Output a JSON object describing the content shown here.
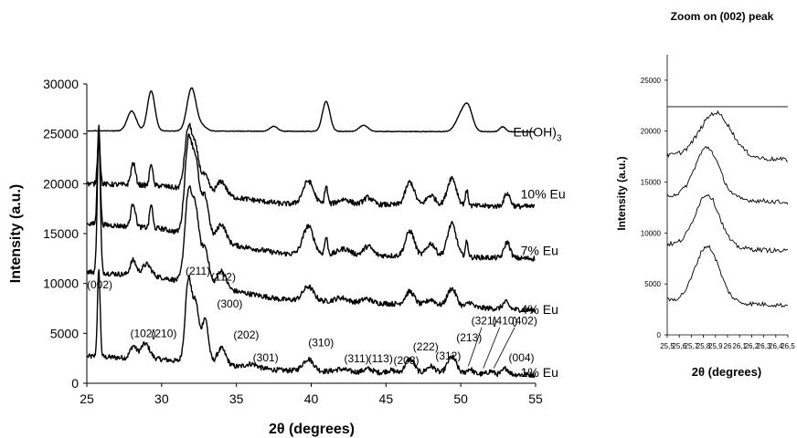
{
  "chart_data": [
    {
      "type": "line",
      "title": "",
      "xlabel": "2θ (degrees)",
      "ylabel": "Intensity (a.u.)",
      "xlim": [
        25,
        55
      ],
      "ylim": [
        0,
        30000
      ],
      "x_ticks": [
        "25",
        "30",
        "35",
        "40",
        "45",
        "50",
        "55"
      ],
      "y_ticks": [
        "0",
        "5000",
        "10000",
        "15000",
        "20000",
        "25000",
        "30000"
      ],
      "grid": false,
      "legend": "none",
      "series": [
        {
          "name": "1% Eu",
          "baseline": 900,
          "background": [
            [
              25,
              2700
            ],
            [
              30,
              2400
            ],
            [
              33,
              1900
            ],
            [
              38,
              1300
            ],
            [
              45,
              1050
            ],
            [
              55,
              850
            ]
          ],
          "peaks": [
            [
              25.8,
              8600,
              0.09
            ],
            [
              28.1,
              1200,
              0.2
            ],
            [
              28.9,
              1500,
              0.3
            ],
            [
              31.8,
              8300,
              0.22
            ],
            [
              32.3,
              5500,
              0.2
            ],
            [
              32.9,
              4600,
              0.22
            ],
            [
              34.0,
              1700,
              0.3
            ],
            [
              36.0,
              400,
              0.4
            ],
            [
              39.8,
              1200,
              0.35
            ],
            [
              42.0,
              250,
              0.4
            ],
            [
              43.8,
              350,
              0.3
            ],
            [
              45.3,
              250,
              0.3
            ],
            [
              46.6,
              1400,
              0.3
            ],
            [
              48.0,
              700,
              0.3
            ],
            [
              49.4,
              1700,
              0.3
            ],
            [
              50.6,
              500,
              0.2
            ],
            [
              52.0,
              300,
              0.2
            ],
            [
              53.0,
              600,
              0.2
            ]
          ]
        },
        {
          "name": "4% Eu",
          "baseline": 7300,
          "background": [
            [
              25,
              11200
            ],
            [
              30,
              10600
            ],
            [
              35,
              9200
            ],
            [
              38,
              8400
            ],
            [
              45,
              8000
            ],
            [
              55,
              7300
            ]
          ],
          "peaks": [
            [
              25.8,
              13800,
              0.1
            ],
            [
              28.1,
              1500,
              0.2
            ],
            [
              29.0,
              1200,
              0.3
            ],
            [
              31.8,
              8900,
              0.25
            ],
            [
              32.3,
              6500,
              0.22
            ],
            [
              32.9,
              3800,
              0.25
            ],
            [
              34.0,
              1800,
              0.3
            ],
            [
              39.8,
              1400,
              0.35
            ],
            [
              42.0,
              400,
              0.4
            ],
            [
              43.7,
              400,
              0.3
            ],
            [
              46.6,
              1300,
              0.3
            ],
            [
              48.0,
              600,
              0.3
            ],
            [
              49.4,
              1800,
              0.3
            ],
            [
              50.6,
              500,
              0.2
            ],
            [
              53.0,
              700,
              0.2
            ]
          ]
        },
        {
          "name": "7% Eu",
          "baseline": 12700,
          "background": [
            [
              25,
              16000
            ],
            [
              30,
              15500
            ],
            [
              35,
              13800
            ],
            [
              38,
              13000
            ],
            [
              45,
              12800
            ],
            [
              55,
              12500
            ]
          ],
          "peaks": [
            [
              25.8,
              10200,
              0.09
            ],
            [
              28.1,
              2400,
              0.15
            ],
            [
              29.3,
              2400,
              0.1
            ],
            [
              31.8,
              9400,
              0.25
            ],
            [
              32.3,
              6500,
              0.22
            ],
            [
              32.9,
              4200,
              0.25
            ],
            [
              34.0,
              1800,
              0.3
            ],
            [
              39.8,
              2800,
              0.35
            ],
            [
              41.0,
              1700,
              0.1
            ],
            [
              42.2,
              600,
              0.4
            ],
            [
              43.8,
              900,
              0.3
            ],
            [
              46.6,
              2500,
              0.3
            ],
            [
              48.0,
              1300,
              0.3
            ],
            [
              49.4,
              3300,
              0.3
            ],
            [
              50.4,
              1500,
              0.1
            ],
            [
              53.1,
              1600,
              0.2
            ]
          ]
        },
        {
          "name": "10% Eu",
          "baseline": 17700,
          "background": [
            [
              25,
              20000
            ],
            [
              30,
              19800
            ],
            [
              35,
              18600
            ],
            [
              38,
              18000
            ],
            [
              45,
              17900
            ],
            [
              55,
              17700
            ]
          ],
          "peaks": [
            [
              25.8,
              4800,
              0.09
            ],
            [
              28.1,
              2200,
              0.15
            ],
            [
              29.3,
              2300,
              0.1
            ],
            [
              31.8,
              6200,
              0.25
            ],
            [
              32.3,
              3600,
              0.22
            ],
            [
              32.9,
              1700,
              0.25
            ],
            [
              34.0,
              1400,
              0.3
            ],
            [
              39.8,
              2300,
              0.35
            ],
            [
              41.0,
              1800,
              0.1
            ],
            [
              42.2,
              500,
              0.4
            ],
            [
              43.8,
              700,
              0.3
            ],
            [
              46.6,
              2300,
              0.3
            ],
            [
              48.0,
              1000,
              0.3
            ],
            [
              49.4,
              2800,
              0.3
            ],
            [
              50.4,
              1500,
              0.1
            ],
            [
              53.1,
              1300,
              0.2
            ]
          ]
        },
        {
          "name": "Eu(OH)3",
          "baseline": 25200,
          "background": [
            [
              25,
              25300
            ],
            [
              55,
              25200
            ]
          ],
          "peaks": [
            [
              28.0,
              2000,
              0.3
            ],
            [
              29.3,
              4000,
              0.25
            ],
            [
              32.0,
              4300,
              0.3
            ],
            [
              32.7,
              500,
              0.3
            ],
            [
              37.5,
              500,
              0.25
            ],
            [
              41.0,
              3000,
              0.25
            ],
            [
              43.5,
              600,
              0.3
            ],
            [
              50.0,
              1500,
              0.35
            ],
            [
              50.5,
              2200,
              0.3
            ],
            [
              52.8,
              500,
              0.2
            ]
          ]
        }
      ],
      "series_labels": [
        {
          "text": "Eu(OH)",
          "sub": "3",
          "at": [
            53.5,
            25200
          ]
        },
        {
          "text": "10% Eu",
          "at": [
            54.0,
            19000
          ]
        },
        {
          "text": "7% Eu",
          "at": [
            54.0,
            13300
          ]
        },
        {
          "text": "4% Eu",
          "at": [
            54.0,
            7400
          ]
        },
        {
          "text": "1% Eu",
          "at": [
            54.0,
            1100
          ]
        }
      ],
      "annotations": [
        {
          "text": "(002)",
          "at": [
            25.0,
            9500
          ]
        },
        {
          "text": "(102)",
          "at": [
            27.9,
            4600
          ]
        },
        {
          "text": "(210)",
          "at": [
            29.3,
            4600
          ]
        },
        {
          "text": "(211)",
          "at": [
            31.6,
            10900
          ]
        },
        {
          "text": "(112)",
          "at": [
            33.3,
            10300
          ]
        },
        {
          "text": "(300)",
          "at": [
            33.7,
            7600
          ]
        },
        {
          "text": "(202)",
          "at": [
            34.8,
            4500
          ]
        },
        {
          "text": "(301)",
          "at": [
            36.1,
            2200
          ]
        },
        {
          "text": "(310)",
          "at": [
            39.8,
            3700
          ]
        },
        {
          "text": "(311)",
          "at": [
            42.2,
            2100
          ]
        },
        {
          "text": "(113)",
          "at": [
            43.8,
            2100
          ]
        },
        {
          "text": "(203)",
          "at": [
            45.5,
            1900
          ]
        },
        {
          "text": "(222)",
          "at": [
            46.8,
            3300
          ]
        },
        {
          "text": "(312)",
          "at": [
            48.3,
            2400
          ]
        },
        {
          "text": "(213)",
          "at": [
            49.7,
            4200
          ]
        },
        {
          "text": "(321)",
          "at": [
            50.7,
            5900
          ]
        },
        {
          "text": "(410)",
          "at": [
            52.1,
            5900
          ]
        },
        {
          "text": "(402)",
          "at": [
            53.4,
            5900
          ]
        },
        {
          "text": "(004)",
          "at": [
            53.2,
            2200
          ]
        }
      ],
      "leader_lines": [
        [
          [
            51.4,
            5600
          ],
          [
            50.5,
            1700
          ]
        ],
        [
          [
            52.6,
            5600
          ],
          [
            51.5,
            1500
          ]
        ],
        [
          [
            53.6,
            5600
          ],
          [
            52.2,
            1500
          ]
        ]
      ]
    },
    {
      "type": "line",
      "title": "Zoom on (002) peak",
      "xlabel": "2θ (degrees)",
      "ylabel": "Intensity (a.u.)",
      "xlim": [
        25.5,
        26.5
      ],
      "ylim": [
        0,
        27500
      ],
      "x_ticks": [
        "25,5",
        "25,6",
        "25,7",
        "25,8",
        "25,9",
        "26",
        "26,1",
        "26,2",
        "26,3",
        "26,4",
        "26,5"
      ],
      "y_ticks": [
        "0",
        "5000",
        "10000",
        "15000",
        "20000",
        "25000"
      ],
      "grid": false,
      "legend": "none",
      "series": [
        {
          "center": 25.83,
          "peak": 8700,
          "base_left": 3400,
          "base_right": 2900,
          "width": 0.1
        },
        {
          "center": 25.83,
          "peak": 13800,
          "base_left": 8900,
          "base_right": 8200,
          "width": 0.1
        },
        {
          "center": 25.83,
          "peak": 18400,
          "base_left": 13700,
          "base_right": 13000,
          "width": 0.1
        },
        {
          "center": 25.9,
          "peak": 21800,
          "base_left": 17600,
          "base_right": 17200,
          "width": 0.13
        },
        {
          "center": 26.0,
          "peak": 22400,
          "base_left": 22400,
          "base_right": 22400,
          "width": 0.1
        }
      ]
    }
  ]
}
